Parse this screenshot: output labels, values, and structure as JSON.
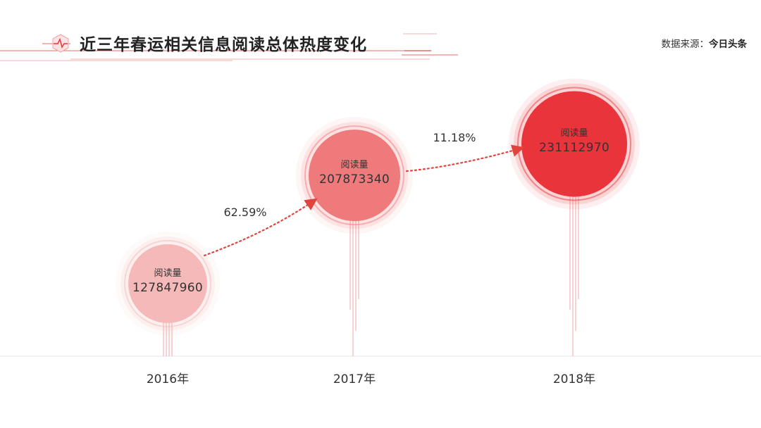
{
  "header": {
    "title": "近三年春运相关信息阅读总体热度变化",
    "source_prefix": "数据来源：",
    "source_name": "今日头条"
  },
  "colors": {
    "accent": "#e8343a",
    "bubble_2016": "#f4b9b8",
    "bubble_2017": "#ef7a7b",
    "bubble_2018": "#e8343a",
    "arrow": "#e0443c"
  },
  "chart_data": {
    "type": "bubble",
    "title": "近三年春运相关信息阅读总体热度变化",
    "categories": [
      "2016年",
      "2017年",
      "2018年"
    ],
    "series": [
      {
        "name": "阅读量",
        "values": [
          127847960,
          207873340,
          231112970
        ]
      }
    ],
    "growth": [
      {
        "from": "2016年",
        "to": "2017年",
        "label": "62.59%"
      },
      {
        "from": "2017年",
        "to": "2018年",
        "label": "11.18%"
      }
    ],
    "bubble_labels": [
      {
        "metric": "阅读量",
        "value": "127847960"
      },
      {
        "metric": "阅读量",
        "value": "207873340"
      },
      {
        "metric": "阅读量",
        "value": "231112970"
      }
    ]
  }
}
